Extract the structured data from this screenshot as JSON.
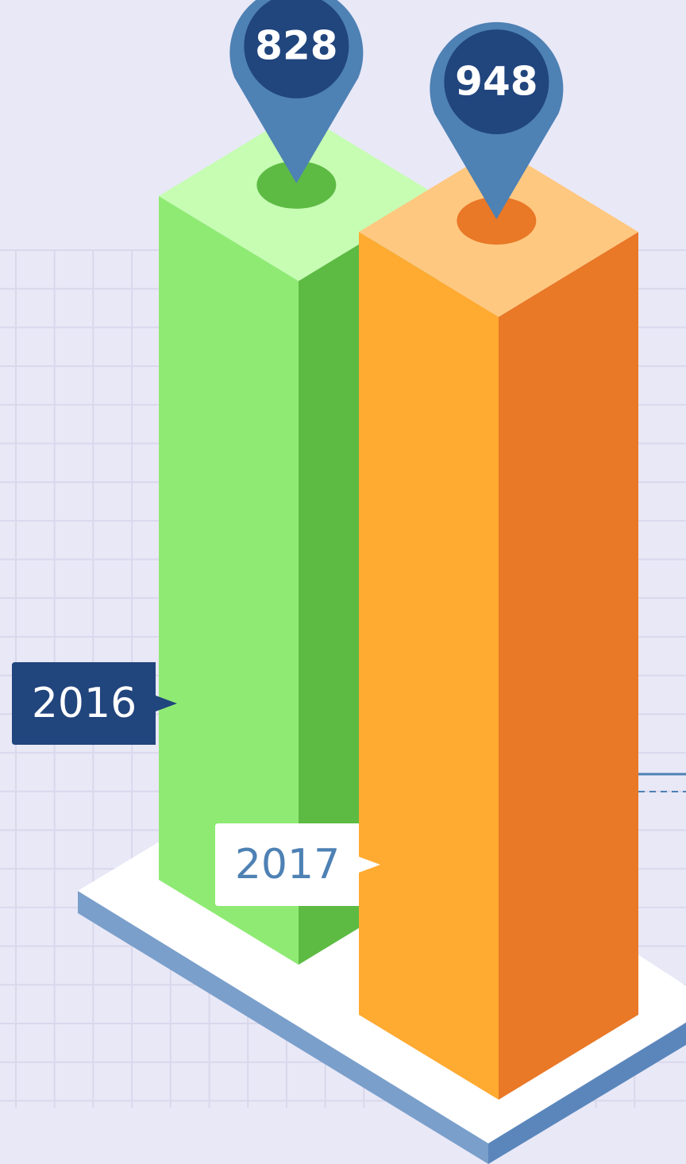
{
  "chart_data": {
    "type": "bar",
    "categories": [
      "2016",
      "2017"
    ],
    "values": [
      828,
      948
    ],
    "colors": [
      "#8fea74",
      "#ffaa30"
    ]
  }
}
